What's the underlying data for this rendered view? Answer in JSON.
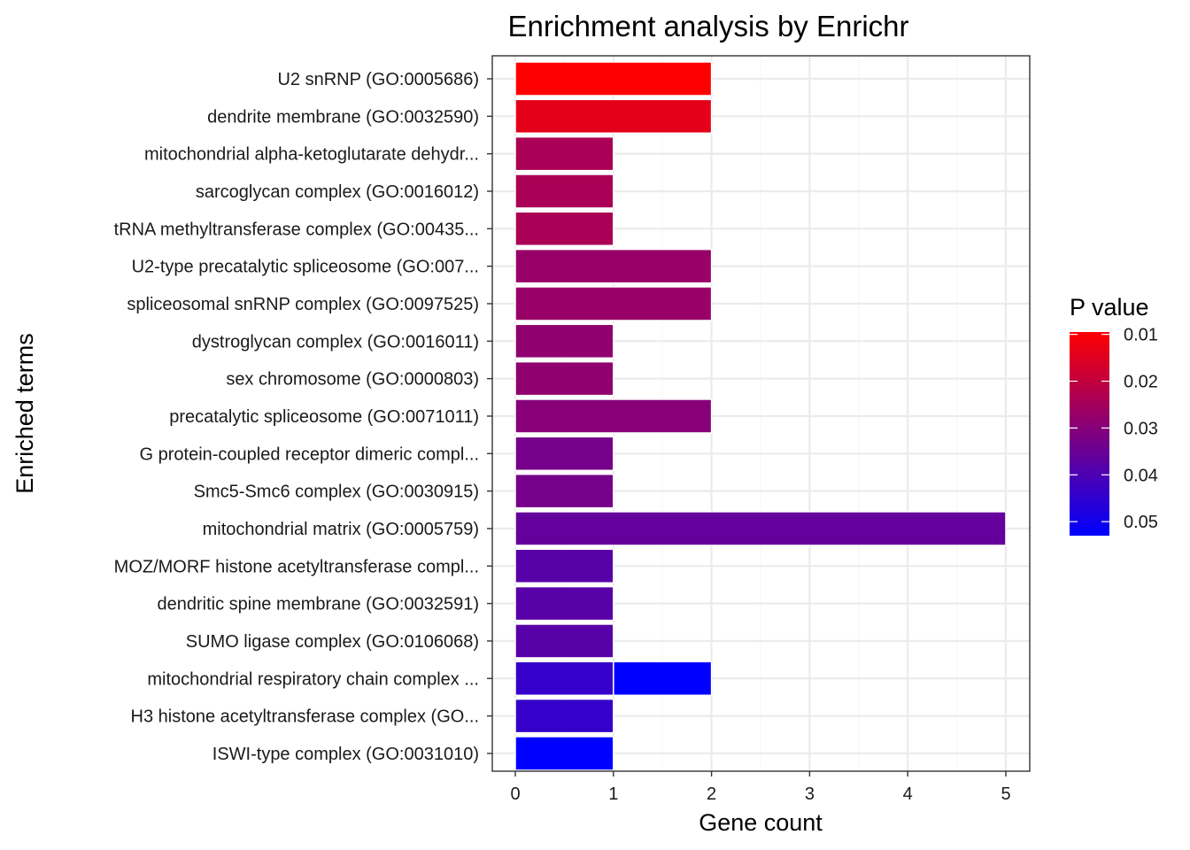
{
  "chart_data": {
    "type": "bar",
    "orientation": "horizontal",
    "title": "Enrichment analysis by Enrichr",
    "xlabel": "Gene count",
    "ylabel": "Enriched terms",
    "xlim": [
      0,
      5.2
    ],
    "xticks": [
      0,
      1,
      2,
      3,
      4,
      5
    ],
    "grid": true,
    "categories": [
      "U2 snRNP (GO:0005686)",
      "dendrite membrane (GO:0032590)",
      "mitochondrial alpha-ketoglutarate dehydr...",
      "sarcoglycan complex (GO:0016012)",
      "tRNA methyltransferase complex (GO:00435...",
      "U2-type precatalytic spliceosome (GO:007...",
      "spliceosomal snRNP complex (GO:0097525)",
      "dystroglycan complex (GO:0016011)",
      "sex chromosome (GO:0000803)",
      "precatalytic spliceosome (GO:0071011)",
      "G protein-coupled receptor dimeric compl...",
      "Smc5-Smc6 complex (GO:0030915)",
      "mitochondrial matrix (GO:0005759)",
      "MOZ/MORF histone acetyltransferase compl...",
      "dendritic spine membrane (GO:0032591)",
      "SUMO ligase complex (GO:0106068)",
      "mitochondrial respiratory chain complex ...",
      "H3 histone acetyltransferase complex (GO...",
      "ISWI-type complex (GO:0031010)"
    ],
    "bars": [
      {
        "term_index": 0,
        "segments": [
          {
            "count": 2,
            "p_value": 0.0095
          }
        ]
      },
      {
        "term_index": 1,
        "segments": [
          {
            "count": 2,
            "p_value": 0.014
          }
        ]
      },
      {
        "term_index": 2,
        "segments": [
          {
            "count": 1,
            "p_value": 0.024
          }
        ]
      },
      {
        "term_index": 3,
        "segments": [
          {
            "count": 1,
            "p_value": 0.024
          }
        ]
      },
      {
        "term_index": 4,
        "segments": [
          {
            "count": 1,
            "p_value": 0.024
          }
        ]
      },
      {
        "term_index": 5,
        "segments": [
          {
            "count": 2,
            "p_value": 0.027
          }
        ]
      },
      {
        "term_index": 6,
        "segments": [
          {
            "count": 2,
            "p_value": 0.027
          }
        ]
      },
      {
        "term_index": 7,
        "segments": [
          {
            "count": 1,
            "p_value": 0.0285
          }
        ]
      },
      {
        "term_index": 8,
        "segments": [
          {
            "count": 1,
            "p_value": 0.0285
          }
        ]
      },
      {
        "term_index": 9,
        "segments": [
          {
            "count": 2,
            "p_value": 0.03
          }
        ]
      },
      {
        "term_index": 10,
        "segments": [
          {
            "count": 1,
            "p_value": 0.033
          }
        ]
      },
      {
        "term_index": 11,
        "segments": [
          {
            "count": 1,
            "p_value": 0.033
          }
        ]
      },
      {
        "term_index": 12,
        "segments": [
          {
            "count": 5,
            "p_value": 0.036
          }
        ]
      },
      {
        "term_index": 13,
        "segments": [
          {
            "count": 1,
            "p_value": 0.038
          }
        ]
      },
      {
        "term_index": 14,
        "segments": [
          {
            "count": 1,
            "p_value": 0.038
          }
        ]
      },
      {
        "term_index": 15,
        "segments": [
          {
            "count": 1,
            "p_value": 0.038
          }
        ]
      },
      {
        "term_index": 16,
        "segments": [
          {
            "count": 1,
            "p_value": 0.044
          },
          {
            "count": 1,
            "p_value": 0.053
          }
        ]
      },
      {
        "term_index": 17,
        "segments": [
          {
            "count": 1,
            "p_value": 0.044
          }
        ]
      },
      {
        "term_index": 18,
        "segments": [
          {
            "count": 1,
            "p_value": 0.053
          }
        ]
      }
    ],
    "legend": {
      "title": "P value",
      "placement": "right",
      "type": "colorbar",
      "p_min": 0.0095,
      "p_max": 0.053,
      "low_color": "#ff0000",
      "high_color": "#0000ff",
      "ticks": [
        0.01,
        0.02,
        0.03,
        0.04,
        0.05
      ],
      "tick_labels": [
        "0.01",
        "0.02",
        "0.03",
        "0.04",
        "0.05"
      ]
    },
    "colors": {
      "grid_major": "#ebebeb",
      "grid_minor": "#f5f5f5",
      "panel_border": "#333333",
      "bar_outline": "#ffffff"
    }
  }
}
